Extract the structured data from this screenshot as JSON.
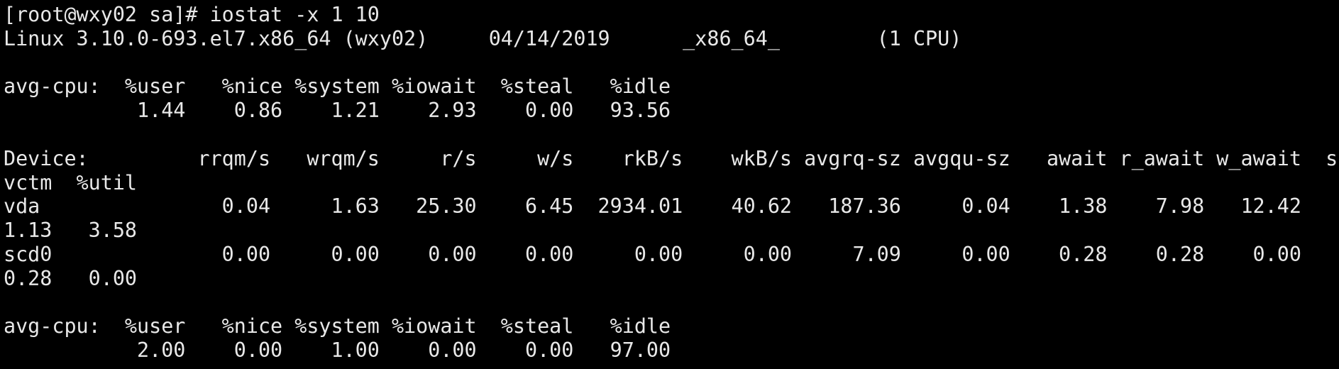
{
  "terminal": {
    "background": "#000000",
    "foreground": "#e8e8e8",
    "columns": 110,
    "command_line": "[root@wxy02 sa]# iostat -x 1 10",
    "system_info": {
      "kernel": "Linux 3.10.0-693.el7.x86_64",
      "host": "(wxy02)",
      "date": "04/14/2019",
      "arch": "_x86_64_",
      "cpus": "(1 CPU)"
    },
    "reports": [
      {
        "cpu": {
          "label": "avg-cpu:",
          "headers": [
            "%user",
            "%nice",
            "%system",
            "%iowait",
            "%steal",
            "%idle"
          ],
          "values": [
            "1.44",
            "0.86",
            "1.21",
            "2.93",
            "0.00",
            "93.56"
          ]
        },
        "devices": {
          "label": "Device:",
          "headers": [
            "rrqm/s",
            "wrqm/s",
            "r/s",
            "w/s",
            "rkB/s",
            "wkB/s",
            "avgrq-sz",
            "avgqu-sz",
            "await",
            "r_await",
            "w_await",
            "svctm",
            "%util"
          ],
          "rows": [
            {
              "device": "vda",
              "values": [
                "0.04",
                "1.63",
                "25.30",
                "6.45",
                "2934.01",
                "40.62",
                "187.36",
                "0.04",
                "1.38",
                "7.98",
                "12.42",
                "1.13",
                "3.58"
              ]
            },
            {
              "device": "scd0",
              "values": [
                "0.00",
                "0.00",
                "0.00",
                "0.00",
                "0.00",
                "0.00",
                "7.09",
                "0.00",
                "0.28",
                "0.28",
                "0.00",
                "0.28",
                "0.00"
              ]
            }
          ]
        }
      },
      {
        "cpu": {
          "label": "avg-cpu:",
          "headers": [
            "%user",
            "%nice",
            "%system",
            "%iowait",
            "%steal",
            "%idle"
          ],
          "values": [
            "2.00",
            "0.00",
            "1.00",
            "0.00",
            "0.00",
            "97.00"
          ]
        }
      }
    ]
  }
}
